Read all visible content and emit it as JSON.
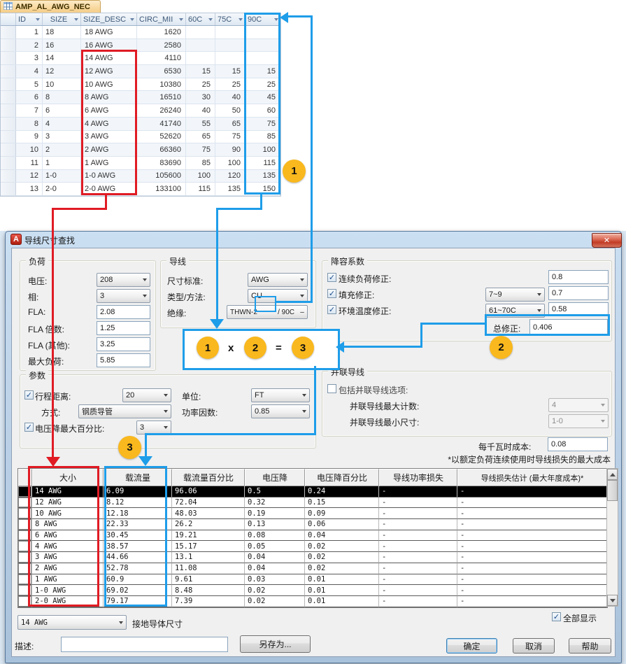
{
  "access_table": {
    "tab_label": "AMP_AL_AWG_NEC",
    "headers": [
      "ID",
      "SIZE",
      "SIZE_DESC",
      "CIRC_MII",
      "60C",
      "75C",
      "90C"
    ],
    "rows": [
      [
        "1",
        "18",
        "18 AWG",
        "1620",
        "",
        "",
        ""
      ],
      [
        "2",
        "16",
        "16 AWG",
        "2580",
        "",
        "",
        ""
      ],
      [
        "3",
        "14",
        "14 AWG",
        "4110",
        "",
        "",
        ""
      ],
      [
        "4",
        "12",
        "12 AWG",
        "6530",
        "15",
        "15",
        "15"
      ],
      [
        "5",
        "10",
        "10 AWG",
        "10380",
        "25",
        "25",
        "25"
      ],
      [
        "6",
        "8",
        "8 AWG",
        "16510",
        "30",
        "40",
        "45"
      ],
      [
        "7",
        "6",
        "6 AWG",
        "26240",
        "40",
        "50",
        "60"
      ],
      [
        "8",
        "4",
        "4 AWG",
        "41740",
        "55",
        "65",
        "75"
      ],
      [
        "9",
        "3",
        "3 AWG",
        "52620",
        "65",
        "75",
        "85"
      ],
      [
        "10",
        "2",
        "2 AWG",
        "66360",
        "75",
        "90",
        "100"
      ],
      [
        "11",
        "1",
        "1 AWG",
        "83690",
        "85",
        "100",
        "115"
      ],
      [
        "12",
        "1-0",
        "1-0 AWG",
        "105600",
        "100",
        "120",
        "135"
      ],
      [
        "13",
        "2-0",
        "2-0 AWG",
        "133100",
        "115",
        "135",
        "150"
      ]
    ]
  },
  "dialog": {
    "title": "导线尺寸查找",
    "load_group": {
      "title": "负荷",
      "voltage_label": "电压:",
      "voltage_value": "208",
      "phase_label": "相:",
      "phase_value": "3",
      "fla_label": "FLA:",
      "fla_value": "2.08",
      "fla_mult_label": "FLA 倍数:",
      "fla_mult_value": "1.25",
      "fla_other_label": "FLA (其他):",
      "fla_other_value": "3.25",
      "max_load_label": "最大负荷:",
      "max_load_value": "5.85"
    },
    "wire_group": {
      "title": "导线",
      "standard_label": "尺寸标准:",
      "standard_value": "AWG",
      "type_label": "类型/方法:",
      "type_value": "CU",
      "insulation_label": "绝缘:",
      "insulation_left": "THWN-2",
      "insulation_right": "/ 90C",
      "insulation_dash": "–"
    },
    "derating_group": {
      "title": "降容系数",
      "rows": [
        {
          "label": "连续负荷修正:",
          "dropdown": "",
          "value": "0.8"
        },
        {
          "label": "填充修正:",
          "dropdown": "7~9",
          "value": "0.7"
        },
        {
          "label": "环境温度修正:",
          "dropdown": "61~70C",
          "value": "0.58"
        }
      ],
      "total_label": "总修正:",
      "total_value": "0.406"
    },
    "params_group": {
      "title": "参数",
      "distance_label": "行程距离:",
      "distance_value": "20",
      "unit_label": "单位:",
      "unit_value": "FT",
      "method_label": "方式:",
      "method_value": "钢质导管",
      "pf_label": "功率因数:",
      "pf_value": "0.85",
      "vd_label": "电压降最大百分比:",
      "vd_value": "3"
    },
    "parallel_group": {
      "title": "并联导线",
      "include_label": "包括并联导线选项:",
      "max_count_label": "并联导线最大计数:",
      "max_count_value": "4",
      "min_size_label": "并联导线最小尺寸:",
      "min_size_value": "1-0"
    },
    "cost_label": "每千瓦时成本:",
    "cost_value": "0.08",
    "cost_note": "*以额定负荷连续使用时导线损失的最大成本",
    "results_table": {
      "headers": [
        "大小",
        "载流量",
        "载流量百分比",
        "电压降",
        "电压降百分比",
        "导线功率损失",
        "导线损失估计 (最大年度成本)*"
      ],
      "selected_index": 0,
      "rows": [
        [
          "14 AWG",
          "6.09",
          "96.06",
          "0.5",
          "0.24",
          "-",
          "-"
        ],
        [
          "12 AWG",
          "8.12",
          "72.04",
          "0.32",
          "0.15",
          "-",
          "-"
        ],
        [
          "10 AWG",
          "12.18",
          "48.03",
          "0.19",
          "0.09",
          "-",
          "-"
        ],
        [
          "8 AWG",
          "22.33",
          "26.2",
          "0.13",
          "0.06",
          "-",
          "-"
        ],
        [
          "6 AWG",
          "30.45",
          "19.21",
          "0.08",
          "0.04",
          "-",
          "-"
        ],
        [
          "4 AWG",
          "38.57",
          "15.17",
          "0.05",
          "0.02",
          "-",
          "-"
        ],
        [
          "3 AWG",
          "44.66",
          "13.1",
          "0.04",
          "0.02",
          "-",
          "-"
        ],
        [
          "2 AWG",
          "52.78",
          "11.08",
          "0.04",
          "0.02",
          "-",
          "-"
        ],
        [
          "1 AWG",
          "60.9",
          "9.61",
          "0.03",
          "0.01",
          "-",
          "-"
        ],
        [
          "1-0 AWG",
          "69.02",
          "8.48",
          "0.02",
          "0.01",
          "-",
          "-"
        ],
        [
          "2-0 AWG",
          "79.17",
          "7.39",
          "0.02",
          "0.01",
          "-",
          "-"
        ]
      ]
    },
    "ground_size_value": "14 AWG",
    "ground_size_label": "接地导体尺寸",
    "show_all_label": "全部显示",
    "desc_label": "描述:",
    "desc_value": "",
    "save_as_label": "另存为...",
    "ok_label": "确定",
    "cancel_label": "取消",
    "help_label": "帮助"
  },
  "annotations": {
    "badge_1": "1",
    "badge_2": "2",
    "badge_3": "3",
    "multiply": "x",
    "equals": "=",
    "colors": {
      "red": "#E01B24",
      "blue": "#1E9DE9",
      "badge_yellow": "#F9B81D"
    }
  },
  "icons": {
    "close": "✕",
    "check": "✓",
    "app_letter": "A"
  }
}
